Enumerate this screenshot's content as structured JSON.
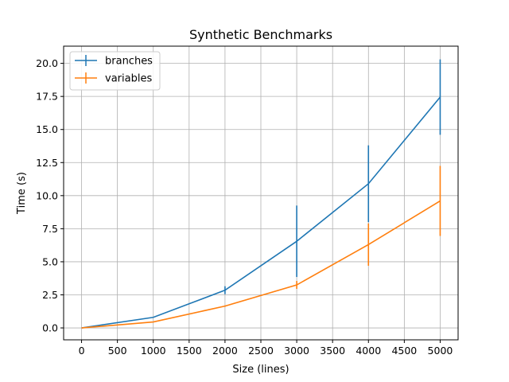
{
  "chart_data": {
    "type": "line",
    "title": "Synthetic Benchmarks",
    "xlabel": "Size (lines)",
    "ylabel": "Time (s)",
    "xlim": [
      -250,
      5250
    ],
    "ylim": [
      -0.9,
      21.3
    ],
    "xticks": [
      0,
      500,
      1000,
      1500,
      2000,
      2500,
      3000,
      3500,
      4000,
      4500,
      5000
    ],
    "yticks": [
      0.0,
      2.5,
      5.0,
      7.5,
      10.0,
      12.5,
      15.0,
      17.5,
      20.0
    ],
    "xtick_labels": [
      "0",
      "500",
      "1000",
      "1500",
      "2000",
      "2500",
      "3000",
      "3500",
      "4000",
      "4500",
      "5000"
    ],
    "ytick_labels": [
      "0.0",
      "2.5",
      "5.0",
      "7.5",
      "10.0",
      "12.5",
      "15.0",
      "17.5",
      "20.0"
    ],
    "grid": true,
    "legend_position": "top-left",
    "x": [
      0,
      1000,
      2000,
      3000,
      4000,
      5000
    ],
    "series": [
      {
        "name": "branches",
        "color": "#1f77b4",
        "values": [
          0.0,
          0.8,
          2.85,
          6.55,
          10.9,
          17.45
        ],
        "err_low": [
          0.0,
          0.8,
          2.55,
          3.85,
          8.0,
          14.6
        ],
        "err_high": [
          0.0,
          0.8,
          3.15,
          9.25,
          13.8,
          20.3
        ]
      },
      {
        "name": "variables",
        "color": "#ff7f0e",
        "values": [
          0.0,
          0.45,
          1.65,
          3.25,
          6.3,
          9.6
        ],
        "err_low": [
          0.0,
          0.45,
          1.6,
          2.95,
          4.7,
          6.95
        ],
        "err_high": [
          0.0,
          0.45,
          1.7,
          3.55,
          7.9,
          12.25
        ]
      }
    ]
  }
}
